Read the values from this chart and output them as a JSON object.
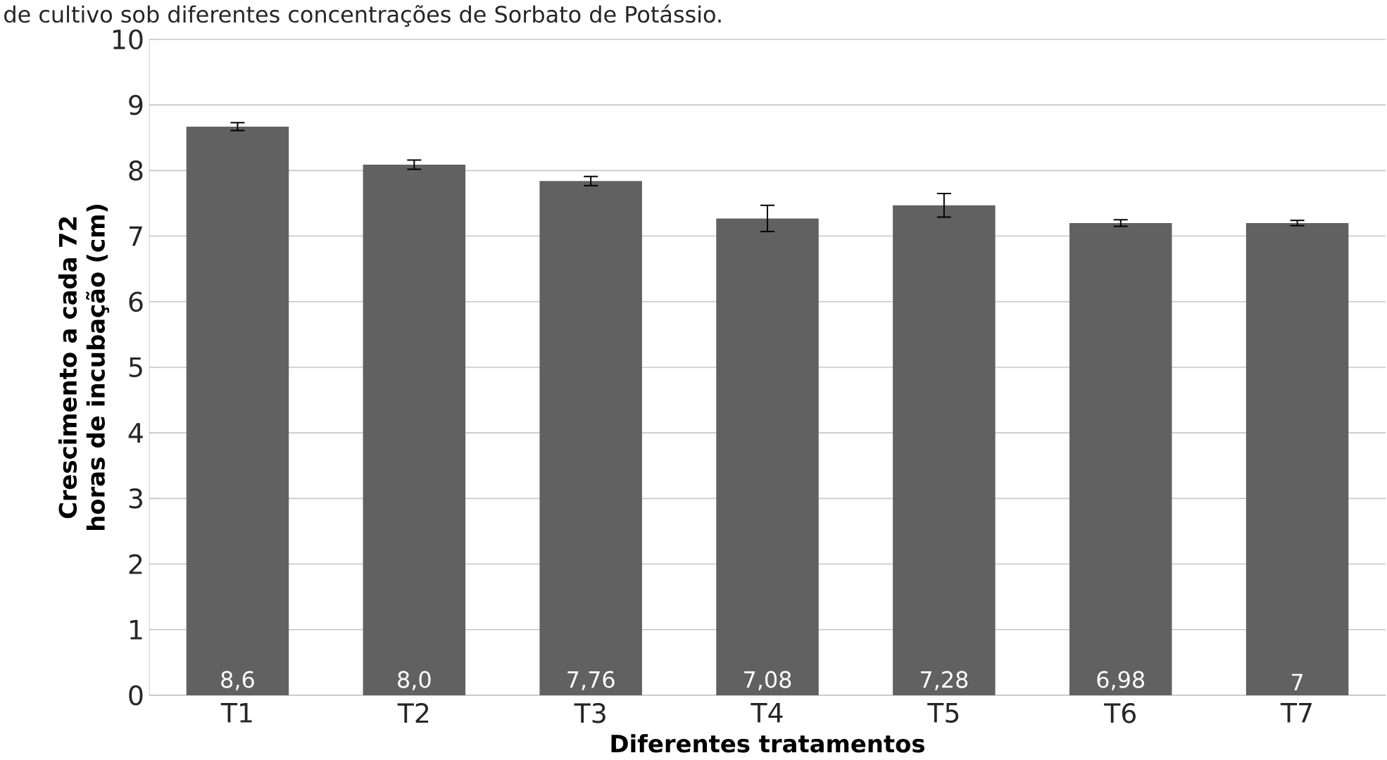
{
  "chart_data": {
    "type": "bar",
    "title": "de cultivo sob diferentes concentrações de Sorbato de Potássio.",
    "xlabel": "Diferentes tratamentos",
    "ylabel": "Crescimento a cada 72 horas de incubação (cm)",
    "categories": [
      "T1",
      "T2",
      "T3",
      "T4",
      "T5",
      "T6",
      "T7"
    ],
    "values": [
      8.67,
      8.09,
      7.84,
      7.27,
      7.47,
      7.2,
      7.2
    ],
    "errors": [
      0.06,
      0.07,
      0.07,
      0.2,
      0.18,
      0.05,
      0.04
    ],
    "color": "#616161",
    "ylim": [
      0,
      10
    ],
    "yticks": [
      0,
      1,
      2,
      3,
      4,
      5,
      6,
      7,
      8,
      9,
      10
    ],
    "grid": "y",
    "annotations": [
      "8,6",
      "8,0",
      "7,76",
      "7,08",
      "7,28",
      "6,98",
      "7"
    ]
  }
}
